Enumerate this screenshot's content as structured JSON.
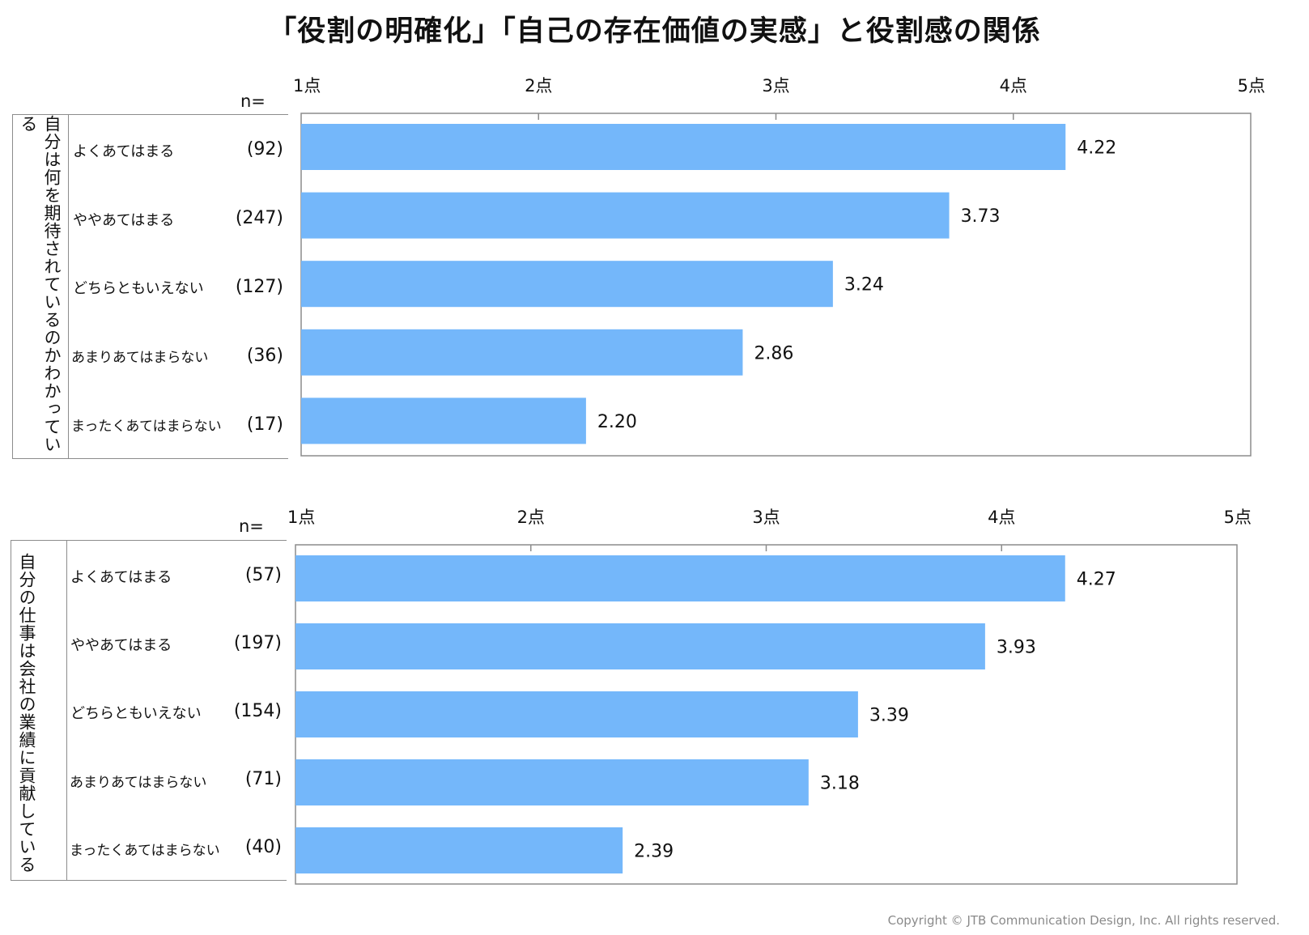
{
  "title": "「役割の明確化」「自己の存在価値の実感」と役割感の関係",
  "n_label": "n=",
  "copyright": "Copyright © JTB Communication Design, Inc. All rights reserved.",
  "bar_color": "#74b7fa",
  "chart_data": [
    {
      "type": "bar",
      "orientation": "horizontal",
      "group_label": "自分は何を期待されているのかわかっている",
      "categories": [
        "よくあてはまる",
        "ややあてはまる",
        "どちらともいえない",
        "あまりあてはまらない",
        "まったくあてはまらない"
      ],
      "n": [
        "(92)",
        "(247)",
        "(127)",
        "(36)",
        "(17)"
      ],
      "values": [
        4.22,
        3.73,
        3.24,
        2.86,
        2.2
      ],
      "value_labels": [
        "4.22",
        "3.73",
        "3.24",
        "2.86",
        "2.20"
      ],
      "xlim": [
        1,
        5
      ],
      "ticks": [
        "1点",
        "2点",
        "3点",
        "4点",
        "5点"
      ],
      "grid": false
    },
    {
      "type": "bar",
      "orientation": "horizontal",
      "group_label": "自分の仕事は会社の業績に貢献している",
      "categories": [
        "よくあてはまる",
        "ややあてはまる",
        "どちらともいえない",
        "あまりあてはまらない",
        "まったくあてはまらない"
      ],
      "n": [
        "(57)",
        "(197)",
        "(154)",
        "(71)",
        "(40)"
      ],
      "values": [
        4.27,
        3.93,
        3.39,
        3.18,
        2.39
      ],
      "value_labels": [
        "4.27",
        "3.93",
        "3.39",
        "3.18",
        "2.39"
      ],
      "xlim": [
        1,
        5
      ],
      "ticks": [
        "1点",
        "2点",
        "3点",
        "4点",
        "5点"
      ],
      "grid": false
    }
  ]
}
